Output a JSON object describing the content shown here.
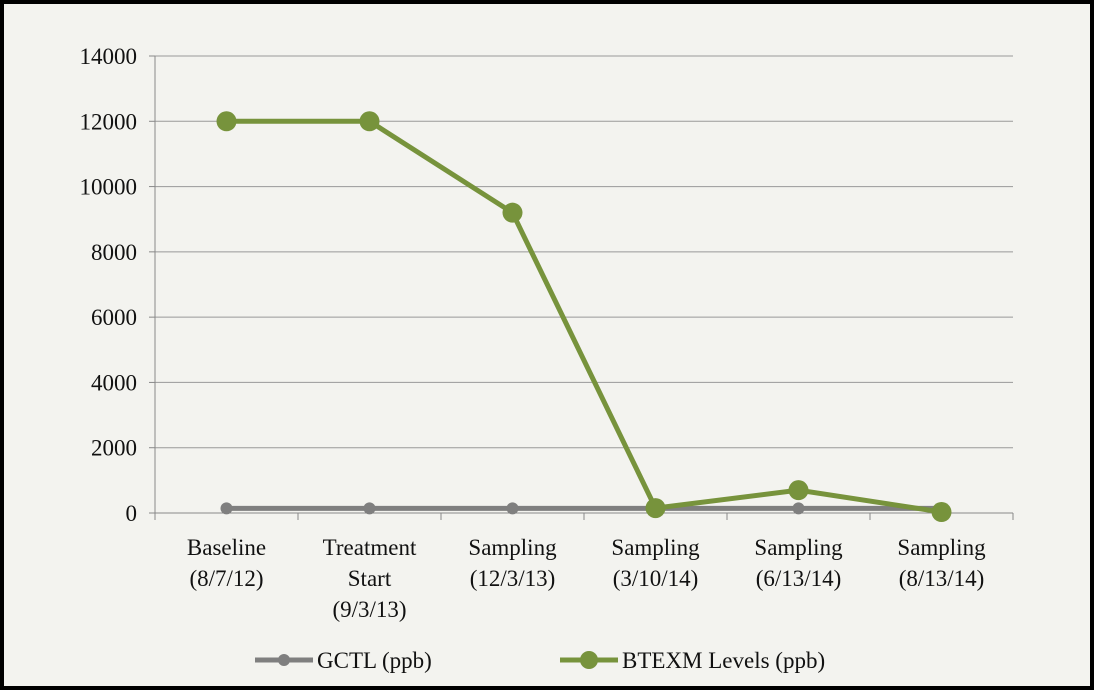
{
  "chart_data": {
    "type": "line",
    "categories": [
      "Baseline (8/7/12)",
      "Treatment Start (9/3/13)",
      "Sampling (12/3/13)",
      "Sampling (3/10/14)",
      "Sampling (6/13/14)",
      "Sampling (8/13/14)"
    ],
    "series": [
      {
        "name": "GCTL (ppb)",
        "color": "#7f7f7f",
        "values": [
          140,
          140,
          140,
          140,
          140,
          140
        ]
      },
      {
        "name": "BTEXM Levels (ppb)",
        "color": "#77933c",
        "values": [
          12000,
          12000,
          9200,
          150,
          700,
          30
        ]
      }
    ],
    "ylim": [
      0,
      14000
    ],
    "yticks": [
      0,
      2000,
      4000,
      6000,
      8000,
      10000,
      12000,
      14000
    ],
    "grid": true,
    "legend": "bottom"
  }
}
